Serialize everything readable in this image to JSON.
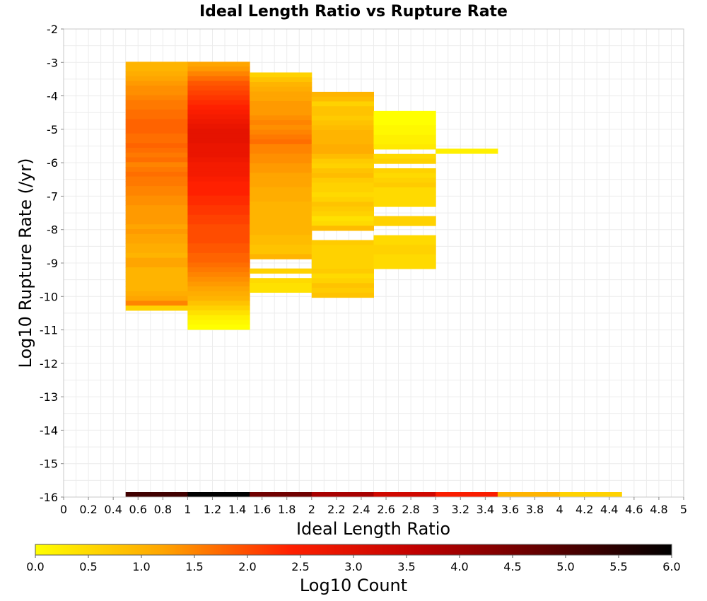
{
  "chart_data": {
    "type": "heatmap",
    "title": "Ideal Length Ratio vs Rupture Rate",
    "xlabel": "Ideal Length Ratio",
    "ylabel": "Log10 Rupture Rate (/yr)",
    "xlim": [
      0,
      5
    ],
    "ylim": [
      -16,
      -2
    ],
    "x_ticks": [
      "0",
      "0.2",
      "0.4",
      "0.6",
      "0.8",
      "1",
      "1.2",
      "1.4",
      "1.6",
      "1.8",
      "2",
      "2.2",
      "2.4",
      "2.6",
      "2.8",
      "3",
      "3.2",
      "3.4",
      "3.6",
      "3.8",
      "4",
      "4.2",
      "4.4",
      "4.6",
      "4.8",
      "5"
    ],
    "y_ticks": [
      "-2",
      "-3",
      "-4",
      "-5",
      "-6",
      "-7",
      "-8",
      "-9",
      "-10",
      "-11",
      "-12",
      "-13",
      "-14",
      "-15",
      "-16"
    ],
    "grid": true,
    "bin_width_x": 0.5,
    "bin_height_y": 0.143,
    "colorbar": {
      "label": "Log10 Count",
      "min": 0.0,
      "max": 6.0,
      "ticks": [
        "0.0",
        "0.5",
        "1.0",
        "1.5",
        "2.0",
        "2.5",
        "3.0",
        "3.5",
        "4.0",
        "4.5",
        "5.0",
        "5.5",
        "6.0"
      ],
      "colors": [
        "#ffff00",
        "#ffa500",
        "#ff2000",
        "#c00000",
        "#600000",
        "#000000"
      ]
    },
    "cells": [
      {
        "x": 0.5,
        "values": [
          1.0,
          1.0,
          1.1,
          1.2,
          1.3,
          1.4,
          1.4,
          1.5,
          1.6,
          1.6,
          1.7,
          1.7,
          1.8,
          1.8,
          1.8,
          1.7,
          1.7,
          1.8,
          1.7,
          1.6,
          1.7,
          1.5,
          1.6,
          1.7,
          1.6,
          1.6,
          1.5,
          1.5,
          1.4,
          1.4,
          1.3,
          1.3,
          1.3,
          1.3,
          1.2,
          1.3,
          1.2,
          1.2,
          1.1,
          1.1,
          1.0,
          1.2,
          1.2,
          1.0,
          1.0,
          1.0,
          1.0,
          1.0,
          1.1,
          1.2,
          1.5,
          0.6
        ],
        "y_top": -2.98
      },
      {
        "x": 1.0,
        "values": [
          1.2,
          1.3,
          1.5,
          1.7,
          1.9,
          2.0,
          2.1,
          2.2,
          2.3,
          2.4,
          2.5,
          2.6,
          2.7,
          2.8,
          2.9,
          2.9,
          2.9,
          2.8,
          2.8,
          2.8,
          2.7,
          2.6,
          2.6,
          2.6,
          2.5,
          2.4,
          2.4,
          2.4,
          2.3,
          2.3,
          2.2,
          2.2,
          2.1,
          2.1,
          2.0,
          2.0,
          2.0,
          2.0,
          1.9,
          1.9,
          1.8,
          1.8,
          1.7,
          1.6,
          1.5,
          1.4,
          1.3,
          1.2,
          1.1,
          1.0,
          0.8,
          0.6,
          0.4,
          0.2,
          0.1,
          0.0
        ],
        "y_top": -2.98
      },
      {
        "x": 1.5,
        "values": [
          0.6,
          0.8,
          1.0,
          1.1,
          1.2,
          1.2,
          1.3,
          1.3,
          1.3,
          1.4,
          1.5,
          1.4,
          1.5,
          1.6,
          1.7,
          1.5,
          1.5,
          1.4,
          1.4,
          1.3,
          1.3,
          1.2,
          1.2,
          1.2,
          1.1,
          1.1,
          1.1,
          1.0,
          1.0,
          1.0,
          1.0,
          1.0,
          1.0,
          1.0,
          0.9,
          0.9,
          0.8,
          0.8,
          1.0,
          null,
          null,
          0.6,
          null,
          0.5,
          0.4,
          0.4
        ],
        "y_top": -3.3
      },
      {
        "x": 2.0,
        "values": [
          1.0,
          0.9,
          0.6,
          0.8,
          0.8,
          0.7,
          0.8,
          0.9,
          1.0,
          1.0,
          1.0,
          1.1,
          1.1,
          0.9,
          0.7,
          0.6,
          0.8,
          0.9,
          0.7,
          0.6,
          0.6,
          0.5,
          0.6,
          0.8,
          0.7,
          0.6,
          0.4,
          0.5,
          0.9,
          null,
          null,
          0.7,
          0.6,
          0.6,
          0.6,
          0.6,
          0.6,
          0.7,
          0.5,
          0.6,
          0.8,
          0.7,
          0.8
        ],
        "y_top": -3.88
      },
      {
        "x": 2.5,
        "values": [
          0.0,
          0.0,
          0.0,
          0.1,
          0.1,
          0.2,
          0.2,
          0.3,
          null,
          0.5,
          0.6,
          null,
          0.6,
          0.5,
          0.6,
          0.7,
          0.5,
          0.5,
          0.5,
          0.5,
          null,
          null,
          0.6,
          0.6,
          null,
          null,
          0.5,
          0.5,
          0.6,
          0.6,
          0.5,
          0.5,
          0.5
        ],
        "y_top": -4.45
      },
      {
        "x": 3.0,
        "values": [
          0.2
        ],
        "y_top": -5.58
      }
    ],
    "bottom_row": {
      "y": -16,
      "values": [
        5.2,
        6.0,
        4.6,
        3.9,
        3.3,
        2.5,
        1.0,
        0.6
      ]
    }
  }
}
